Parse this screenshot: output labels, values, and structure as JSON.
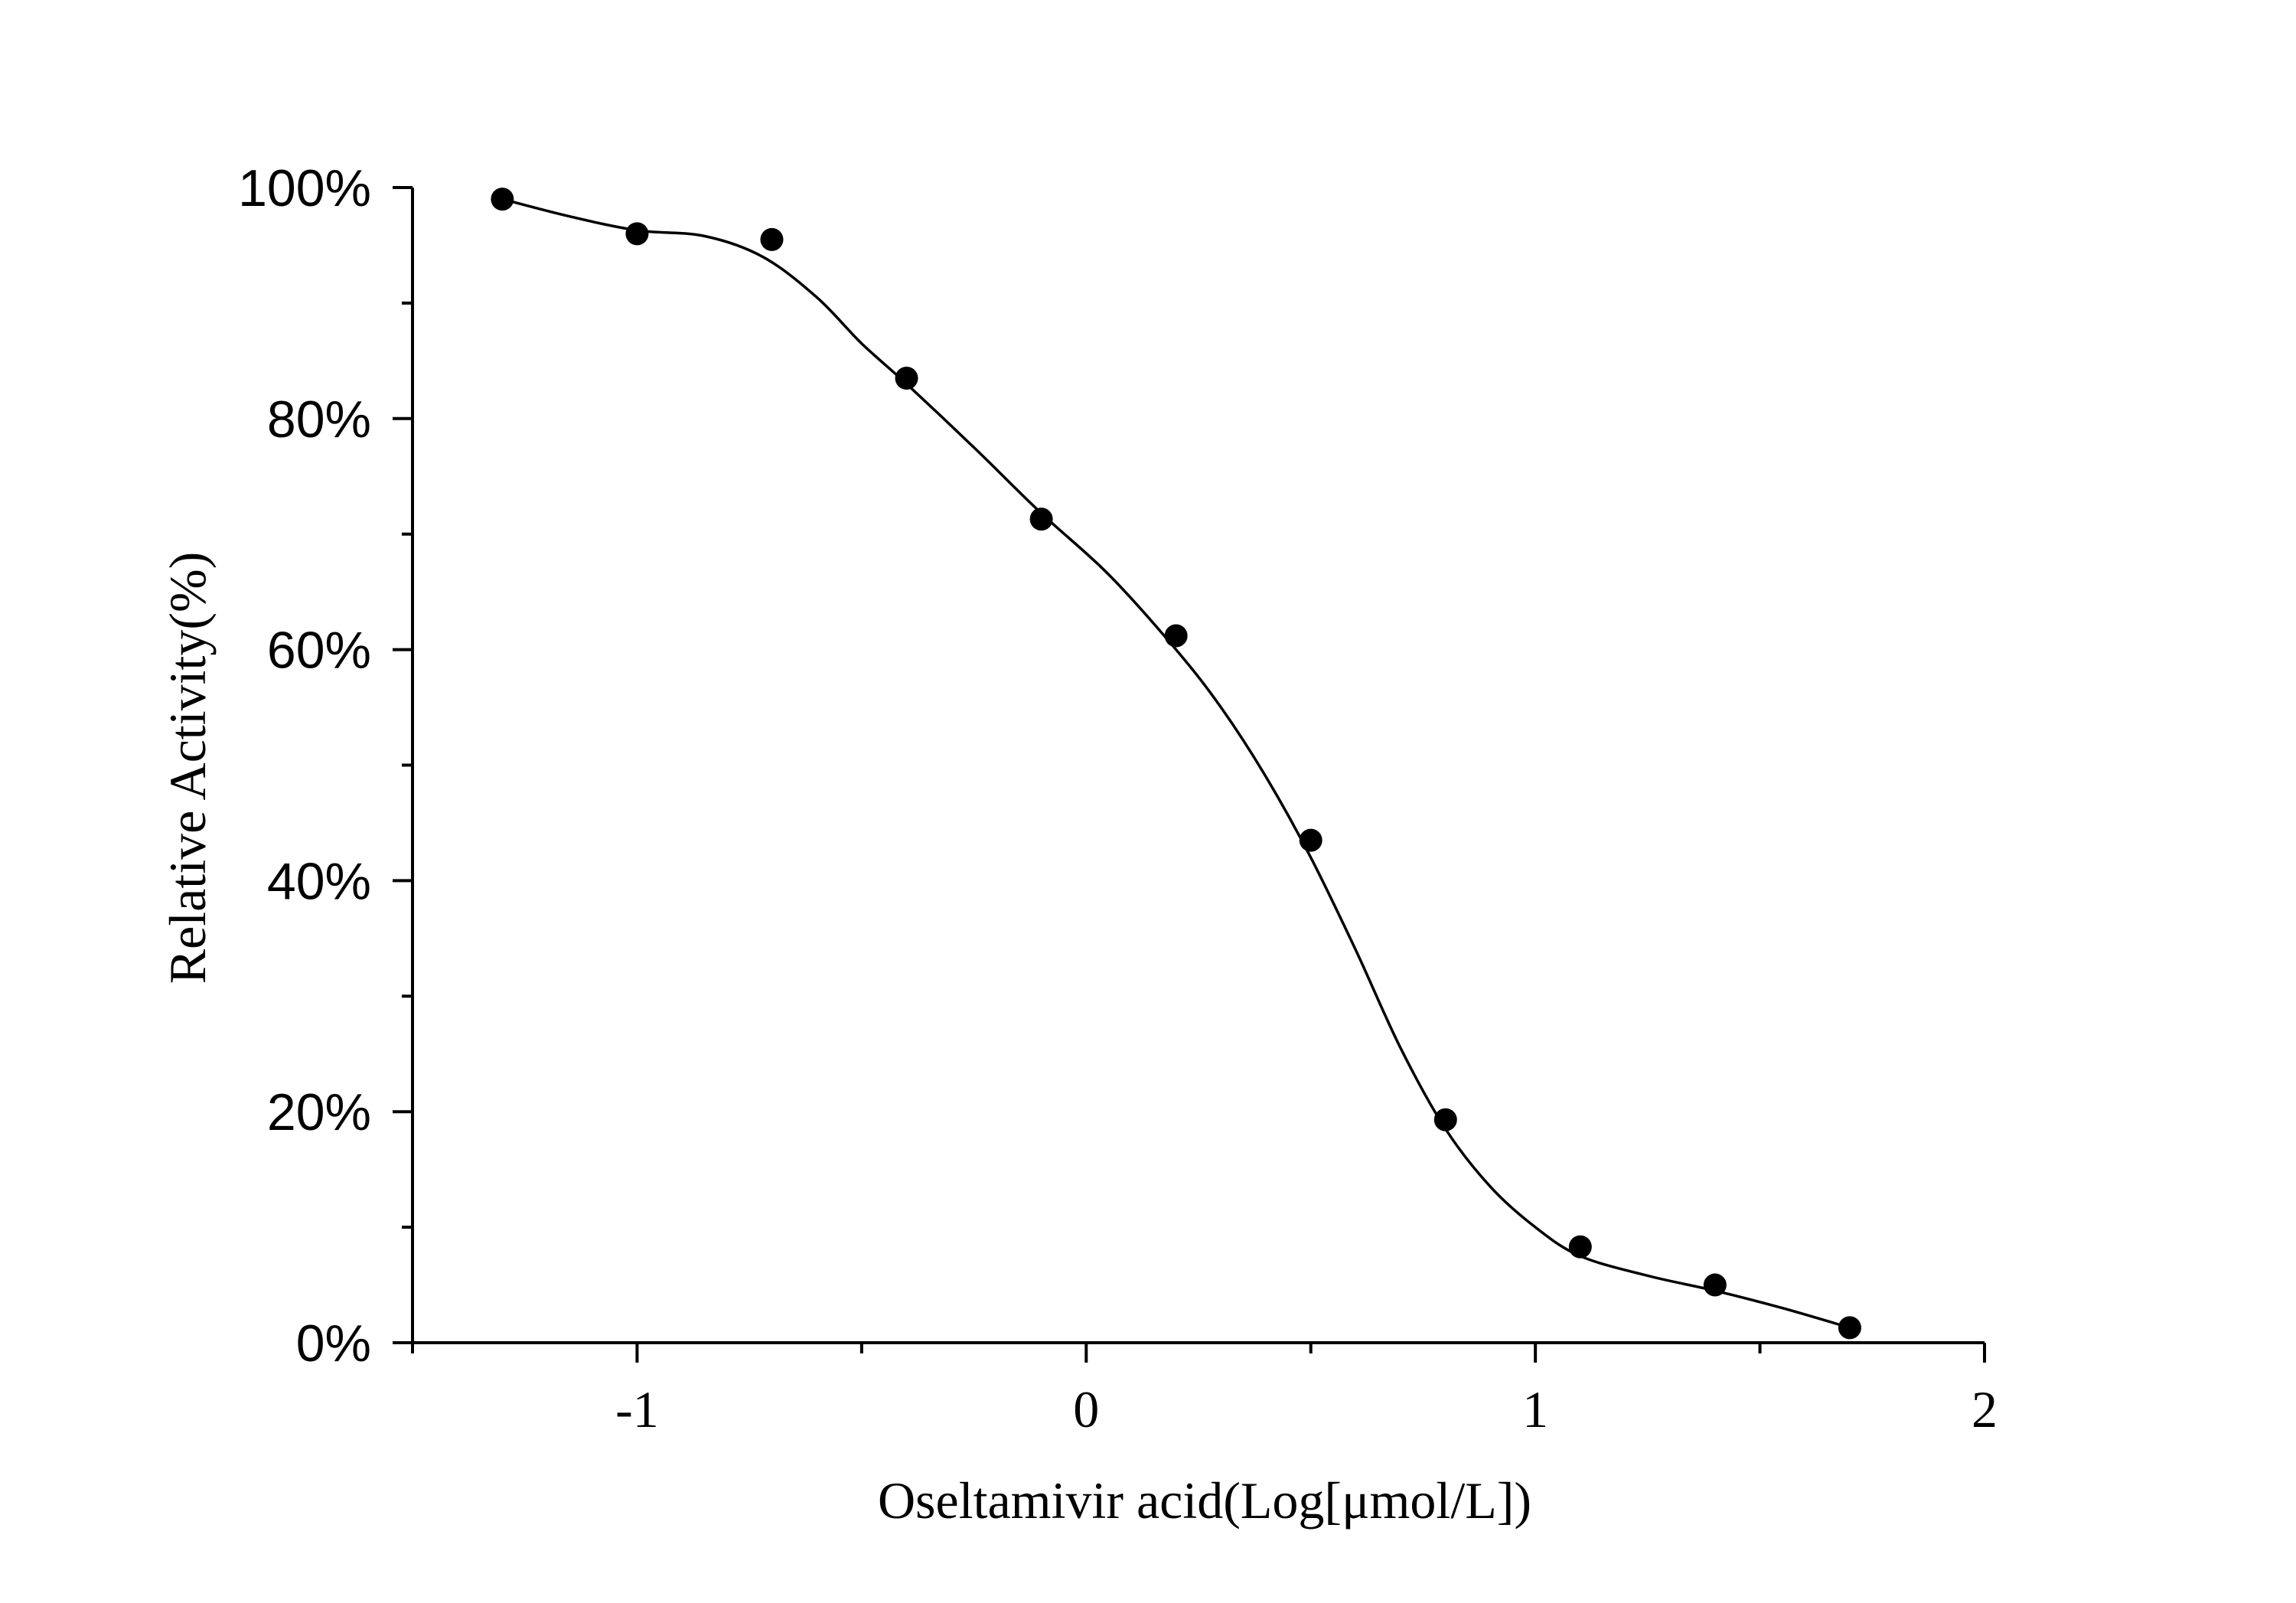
{
  "chart_data": {
    "type": "scatter",
    "title": "",
    "xlabel": "Oseltamivir acid(Log[μmol/L])",
    "ylabel": "Relative Activity(%)",
    "xlim": [
      -1.5,
      2
    ],
    "ylim": [
      0,
      1
    ],
    "x_ticks": [
      -1,
      0,
      1,
      2
    ],
    "x_tick_labels": [
      "-1",
      "0",
      "1",
      "2"
    ],
    "y_ticks": [
      0,
      0.2,
      0.4,
      0.6,
      0.8,
      1.0
    ],
    "y_tick_labels": [
      "0%",
      "20%",
      "40%",
      "60%",
      "80%",
      "100%"
    ],
    "grid": false,
    "legend": "none",
    "series": [
      {
        "marker": "filled-circle",
        "color": "#000000",
        "points": [
          {
            "x": -1.3,
            "y": 0.99
          },
          {
            "x": -1.0,
            "y": 0.96
          },
          {
            "x": -0.7,
            "y": 0.955
          },
          {
            "x": -0.4,
            "y": 0.835
          },
          {
            "x": -0.1,
            "y": 0.713
          },
          {
            "x": 0.2,
            "y": 0.612
          },
          {
            "x": 0.5,
            "y": 0.435
          },
          {
            "x": 0.8,
            "y": 0.193
          },
          {
            "x": 1.1,
            "y": 0.083
          },
          {
            "x": 1.4,
            "y": 0.05
          },
          {
            "x": 1.7,
            "y": 0.013
          }
        ]
      }
    ],
    "fit_curve": {
      "style": "solid",
      "color": "#000000",
      "points": [
        {
          "x": -1.3,
          "y": 0.99
        },
        {
          "x": -1.15,
          "y": 0.975
        },
        {
          "x": -1.0,
          "y": 0.963
        },
        {
          "x": -0.85,
          "y": 0.958
        },
        {
          "x": -0.72,
          "y": 0.94
        },
        {
          "x": -0.6,
          "y": 0.905
        },
        {
          "x": -0.5,
          "y": 0.865
        },
        {
          "x": -0.4,
          "y": 0.83
        },
        {
          "x": -0.25,
          "y": 0.775
        },
        {
          "x": -0.1,
          "y": 0.718
        },
        {
          "x": 0.05,
          "y": 0.665
        },
        {
          "x": 0.2,
          "y": 0.6
        },
        {
          "x": 0.3,
          "y": 0.55
        },
        {
          "x": 0.4,
          "y": 0.49
        },
        {
          "x": 0.5,
          "y": 0.42
        },
        {
          "x": 0.6,
          "y": 0.34
        },
        {
          "x": 0.7,
          "y": 0.255
        },
        {
          "x": 0.8,
          "y": 0.185
        },
        {
          "x": 0.9,
          "y": 0.135
        },
        {
          "x": 1.0,
          "y": 0.1
        },
        {
          "x": 1.1,
          "y": 0.075
        },
        {
          "x": 1.25,
          "y": 0.058
        },
        {
          "x": 1.4,
          "y": 0.045
        },
        {
          "x": 1.55,
          "y": 0.03
        },
        {
          "x": 1.7,
          "y": 0.013
        }
      ]
    }
  }
}
